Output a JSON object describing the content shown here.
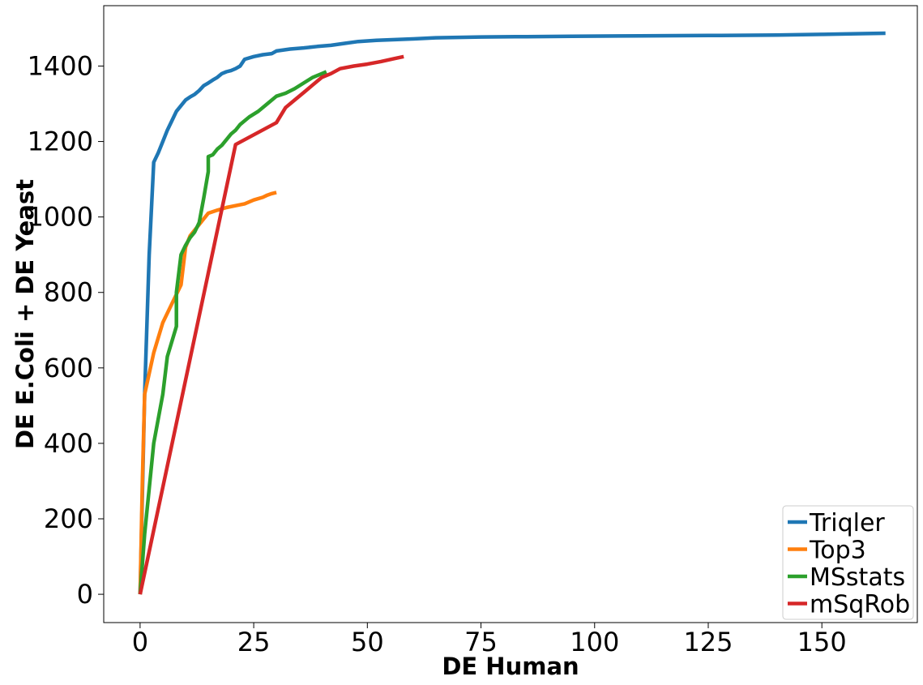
{
  "chart_data": {
    "type": "line",
    "xlabel": "DE Human",
    "ylabel": "DE E.Coli + DE Yeast",
    "xlim": [
      -8,
      171
    ],
    "ylim": [
      -75,
      1560
    ],
    "xticks": [
      0,
      25,
      50,
      75,
      100,
      125,
      150
    ],
    "yticks": [
      0,
      200,
      400,
      600,
      800,
      1000,
      1200,
      1400
    ],
    "grid": false,
    "legend_position": "bottom-right",
    "series": [
      {
        "name": "Triqler",
        "color": "#1f77b4",
        "points": [
          [
            0,
            0
          ],
          [
            1,
            530
          ],
          [
            2,
            900
          ],
          [
            3,
            1145
          ],
          [
            4,
            1170
          ],
          [
            5,
            1200
          ],
          [
            6,
            1230
          ],
          [
            7,
            1255
          ],
          [
            8,
            1280
          ],
          [
            9,
            1295
          ],
          [
            10,
            1310
          ],
          [
            11,
            1318
          ],
          [
            12,
            1325
          ],
          [
            13,
            1335
          ],
          [
            14,
            1348
          ],
          [
            15,
            1355
          ],
          [
            16,
            1363
          ],
          [
            17,
            1370
          ],
          [
            18,
            1380
          ],
          [
            19,
            1385
          ],
          [
            20,
            1388
          ],
          [
            21,
            1393
          ],
          [
            22,
            1400
          ],
          [
            23,
            1418
          ],
          [
            25,
            1425
          ],
          [
            27,
            1430
          ],
          [
            29,
            1433
          ],
          [
            30,
            1440
          ],
          [
            33,
            1445
          ],
          [
            36,
            1448
          ],
          [
            39,
            1452
          ],
          [
            42,
            1455
          ],
          [
            45,
            1460
          ],
          [
            48,
            1465
          ],
          [
            52,
            1468
          ],
          [
            56,
            1470
          ],
          [
            60,
            1472
          ],
          [
            65,
            1475
          ],
          [
            70,
            1476
          ],
          [
            75,
            1477
          ],
          [
            85,
            1478
          ],
          [
            95,
            1479
          ],
          [
            110,
            1480
          ],
          [
            125,
            1481
          ],
          [
            140,
            1482
          ],
          [
            150,
            1484
          ],
          [
            155,
            1485
          ],
          [
            160,
            1486
          ],
          [
            164,
            1487
          ]
        ]
      },
      {
        "name": "Top3",
        "color": "#ff7f0e",
        "points": [
          [
            0,
            0
          ],
          [
            0.5,
            300
          ],
          [
            1,
            530
          ],
          [
            3,
            640
          ],
          [
            5,
            720
          ],
          [
            7,
            770
          ],
          [
            9,
            820
          ],
          [
            10,
            920
          ],
          [
            11,
            950
          ],
          [
            12,
            965
          ],
          [
            13,
            980
          ],
          [
            14,
            995
          ],
          [
            15,
            1010
          ],
          [
            17,
            1018
          ],
          [
            19,
            1025
          ],
          [
            21,
            1030
          ],
          [
            23,
            1035
          ],
          [
            25,
            1045
          ],
          [
            27,
            1052
          ],
          [
            28,
            1058
          ],
          [
            29,
            1062
          ],
          [
            30,
            1065
          ]
        ]
      },
      {
        "name": "MSstats",
        "color": "#2ca02c",
        "points": [
          [
            0,
            0
          ],
          [
            1,
            160
          ],
          [
            2,
            280
          ],
          [
            3,
            400
          ],
          [
            5,
            530
          ],
          [
            6,
            630
          ],
          [
            8,
            710
          ],
          [
            8,
            800
          ],
          [
            9,
            900
          ],
          [
            10,
            925
          ],
          [
            11,
            945
          ],
          [
            12,
            960
          ],
          [
            13,
            985
          ],
          [
            14,
            1050
          ],
          [
            15,
            1120
          ],
          [
            15,
            1160
          ],
          [
            16,
            1165
          ],
          [
            17,
            1180
          ],
          [
            18,
            1190
          ],
          [
            20,
            1220
          ],
          [
            21,
            1230
          ],
          [
            22,
            1245
          ],
          [
            24,
            1265
          ],
          [
            26,
            1280
          ],
          [
            28,
            1300
          ],
          [
            30,
            1320
          ],
          [
            32,
            1328
          ],
          [
            34,
            1340
          ],
          [
            36,
            1355
          ],
          [
            38,
            1370
          ],
          [
            40,
            1380
          ],
          [
            41,
            1385
          ]
        ]
      },
      {
        "name": "mSqRob",
        "color": "#d62728",
        "points": [
          [
            0,
            0
          ],
          [
            21,
            1192
          ],
          [
            30,
            1250
          ],
          [
            32,
            1290
          ],
          [
            34,
            1310
          ],
          [
            36,
            1330
          ],
          [
            38,
            1350
          ],
          [
            40,
            1370
          ],
          [
            42,
            1380
          ],
          [
            44,
            1393
          ],
          [
            47,
            1400
          ],
          [
            50,
            1405
          ],
          [
            53,
            1412
          ],
          [
            56,
            1420
          ],
          [
            58,
            1425
          ]
        ]
      }
    ]
  }
}
